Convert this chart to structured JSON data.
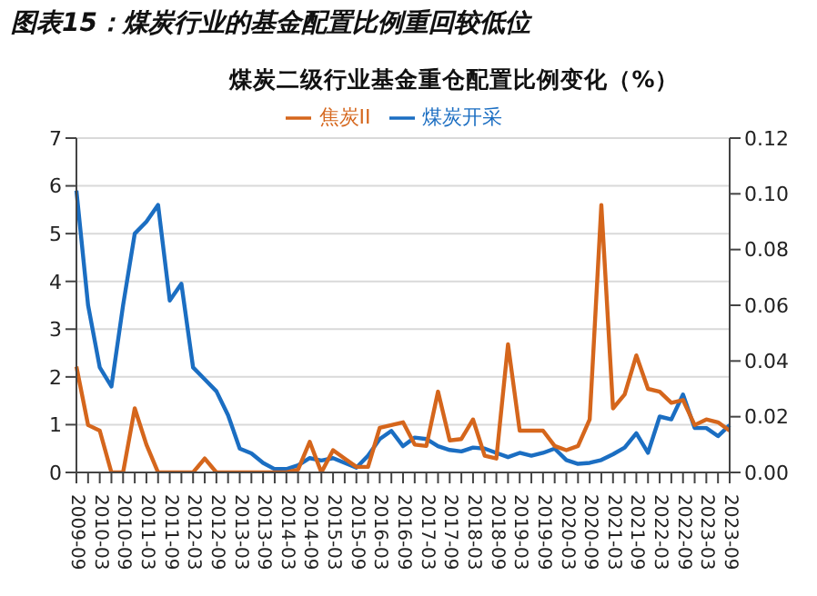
{
  "chart_data": {
    "type": "line",
    "title": "图表15：煤炭行业的基金配置比例重回较低位",
    "subtitle": "煤炭二级行业基金重仓配置比例变化（%）",
    "categories": [
      "2009-09",
      null,
      "2010-03",
      null,
      "2010-09",
      null,
      "2011-03",
      null,
      "2011-09",
      null,
      "2012-03",
      null,
      "2012-09",
      null,
      "2013-03",
      null,
      "2013-09",
      null,
      "2014-03",
      null,
      "2014-09",
      null,
      "2015-03",
      null,
      "2015-09",
      null,
      "2016-03",
      null,
      "2016-09",
      null,
      "2017-03",
      null,
      "2017-09",
      null,
      "2018-03",
      null,
      "2018-09",
      null,
      "2019-03",
      null,
      "2019-09",
      null,
      "2020-03",
      null,
      "2020-09",
      null,
      "2021-03",
      null,
      "2021-09",
      null,
      "2022-03",
      null,
      "2022-09",
      null,
      "2023-03",
      null,
      "2023-09"
    ],
    "series": [
      {
        "name": "煤炭开采",
        "color": "#1b6ec2",
        "values": [
          5.9,
          3.5,
          2.2,
          1.8,
          3.5,
          5.0,
          5.25,
          5.6,
          3.6,
          3.95,
          2.2,
          1.95,
          1.7,
          1.2,
          0.5,
          0.4,
          0.2,
          0.07,
          0.07,
          0.15,
          0.3,
          0.25,
          0.3,
          0.2,
          0.1,
          0.35,
          0.7,
          0.87,
          0.55,
          0.73,
          0.7,
          0.55,
          0.47,
          0.44,
          0.52,
          0.5,
          0.41,
          0.32,
          0.41,
          0.35,
          0.41,
          0.5,
          0.26,
          0.18,
          0.2,
          0.26,
          0.38,
          0.52,
          0.82,
          0.41,
          1.17,
          1.11,
          1.63,
          0.93,
          0.93,
          0.76,
          0.99
        ]
      },
      {
        "name": "焦炭II",
        "color": "#d5661c",
        "axis": "y2",
        "values": [
          0.038,
          0.017,
          0.015,
          0,
          0,
          0.023,
          0.01,
          0,
          0,
          0,
          0,
          0.005,
          0,
          0,
          0,
          0,
          0,
          0,
          0,
          0.001,
          0.011,
          0,
          0.008,
          0.005,
          0.002,
          0.002,
          0.016,
          0.017,
          0.018,
          0.01,
          0.0095,
          0.029,
          0.0115,
          0.012,
          0.019,
          0.006,
          0.005,
          0.046,
          0.015,
          0.015,
          0.015,
          0.0095,
          0.008,
          0.0095,
          0.019,
          0.096,
          0.023,
          0.028,
          0.042,
          0.03,
          0.029,
          0.025,
          0.026,
          0.017,
          0.019,
          0.018,
          0.015
        ]
      }
    ],
    "ylim": [
      0,
      7
    ],
    "yticks": [
      0,
      1,
      2,
      3,
      4,
      5,
      6,
      7
    ],
    "y2lim": [
      0,
      0.12
    ],
    "y2ticks": [
      {
        "value": 0,
        "label": "0.00"
      },
      {
        "value": 0.02,
        "label": "0.02"
      },
      {
        "value": 0.04,
        "label": "0.04"
      },
      {
        "value": 0.06,
        "label": "0.06"
      },
      {
        "value": 0.08,
        "label": "0.08"
      },
      {
        "value": 0.1,
        "label": "0.10"
      },
      {
        "value": 0.12,
        "label": "0.12"
      }
    ],
    "grid": "y",
    "legend": "top",
    "marker": "none",
    "line_style": "solid"
  }
}
